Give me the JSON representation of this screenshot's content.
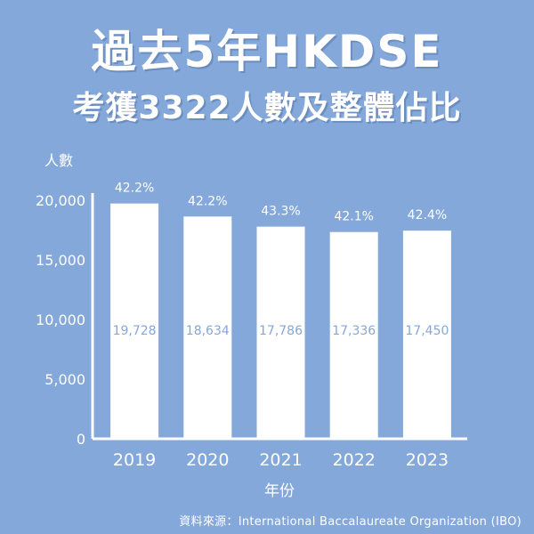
{
  "header": {
    "title_line1": "過去5年HKDSE",
    "title_line2": "考獲3322人數及整體佔比"
  },
  "source": "資料來源：International Baccalaureate Organization (IBO)",
  "colors": {
    "background": "#84a8d9",
    "bar": "#ffffff",
    "text": "#ffffff",
    "value_text": "#84a8d9"
  },
  "chart_data": {
    "type": "bar",
    "categories": [
      "2019",
      "2020",
      "2021",
      "2022",
      "2023"
    ],
    "values": [
      19728,
      18634,
      17786,
      17336,
      17450
    ],
    "value_labels": [
      "19,728",
      "18,634",
      "17,786",
      "17,336",
      "17,450"
    ],
    "percentages": [
      "42.2%",
      "42.2%",
      "43.3%",
      "42.1%",
      "42.4%"
    ],
    "ylabel": "人數",
    "xlabel": "年份",
    "ylim": [
      0,
      20000
    ],
    "yticks": [
      0,
      5000,
      10000,
      15000,
      20000
    ],
    "ytick_labels": [
      "0",
      "5,000",
      "10,000",
      "15,000",
      "20,000"
    ],
    "grid": false,
    "legend": "none"
  }
}
